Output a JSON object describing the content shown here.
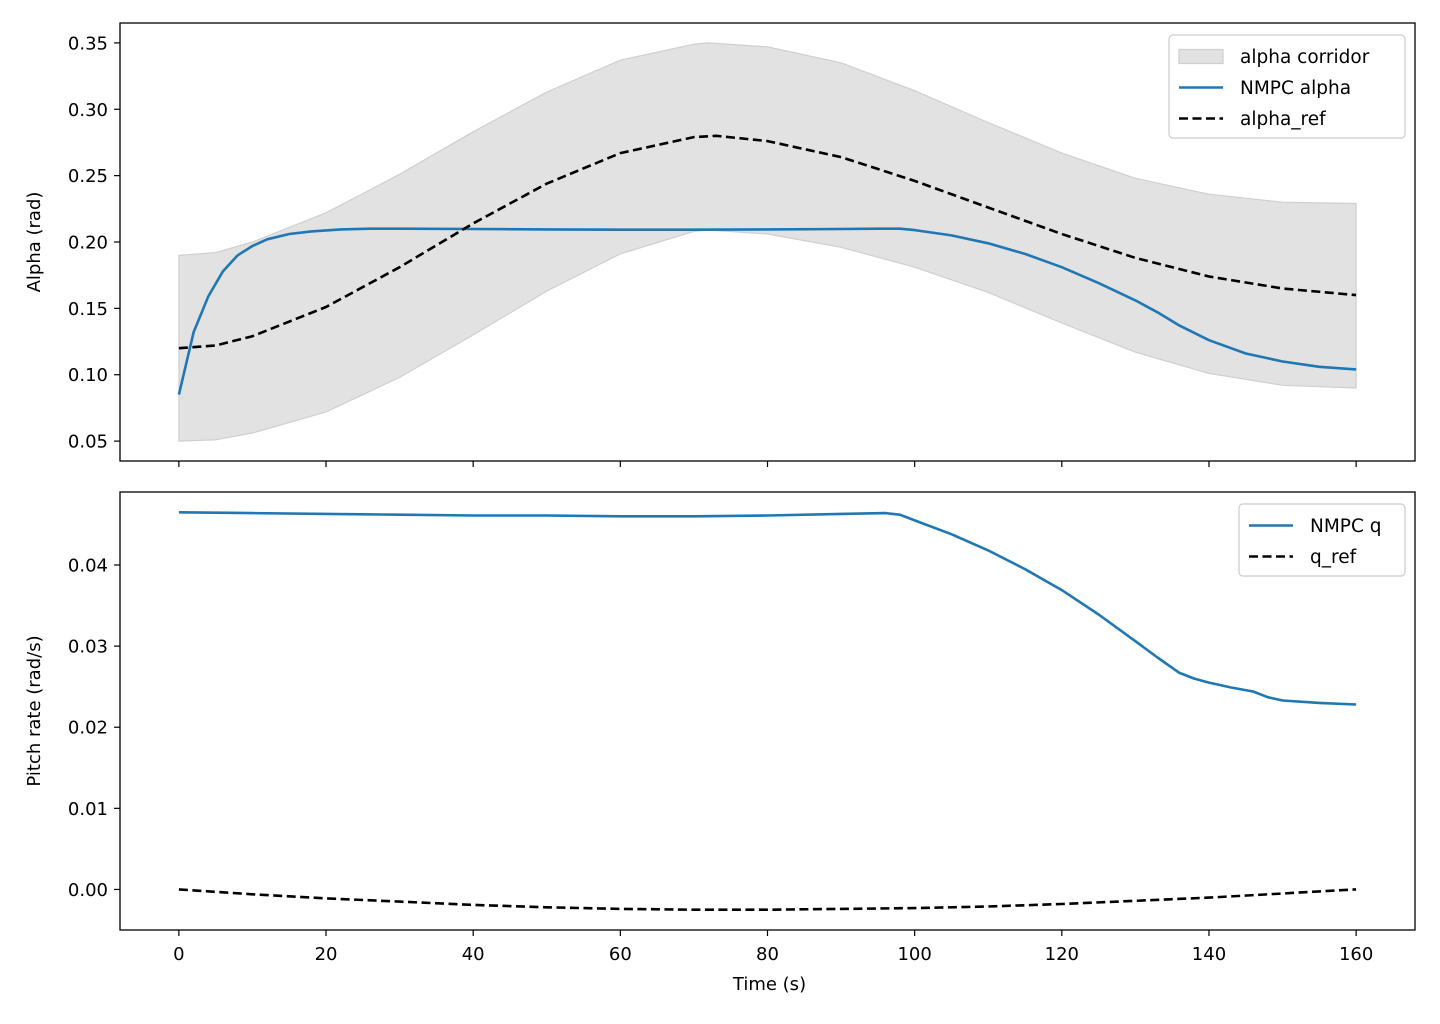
{
  "chart_data": [
    {
      "type": "line",
      "title": "",
      "xlabel": "",
      "ylabel": "Alpha (rad)",
      "xlim": [
        -8,
        168
      ],
      "ylim": [
        0.035,
        0.365
      ],
      "xticks": [
        0,
        20,
        40,
        60,
        80,
        100,
        120,
        140,
        160
      ],
      "yticks": [
        "0.05",
        "0.10",
        "0.15",
        "0.20",
        "0.25",
        "0.30",
        "0.35"
      ],
      "grid": false,
      "legend": "top-right",
      "band": {
        "name": "alpha corridor",
        "color": "#e2e2e2",
        "edge_color": "#cfcfcf",
        "x": [
          0,
          5,
          10,
          20,
          30,
          40,
          50,
          60,
          70,
          72,
          80,
          90,
          100,
          110,
          120,
          130,
          140,
          150,
          160
        ],
        "upper": [
          0.19,
          0.192,
          0.2,
          0.222,
          0.251,
          0.283,
          0.313,
          0.337,
          0.349,
          0.35,
          0.347,
          0.335,
          0.314,
          0.29,
          0.267,
          0.248,
          0.236,
          0.23,
          0.229
        ],
        "lower": [
          0.05,
          0.051,
          0.056,
          0.072,
          0.098,
          0.13,
          0.163,
          0.191,
          0.208,
          0.209,
          0.206,
          0.196,
          0.181,
          0.162,
          0.139,
          0.117,
          0.101,
          0.092,
          0.09
        ]
      },
      "series": [
        {
          "name": "NMPC alpha",
          "color": "#1f77b4",
          "dash": "solid",
          "x": [
            0,
            2,
            4,
            6,
            8,
            10,
            12,
            15,
            18,
            22,
            26,
            30,
            40,
            50,
            60,
            70,
            80,
            90,
            95,
            98,
            100,
            105,
            110,
            115,
            120,
            125,
            130,
            133,
            136,
            140,
            145,
            150,
            155,
            160
          ],
          "y": [
            0.085,
            0.132,
            0.159,
            0.178,
            0.19,
            0.197,
            0.202,
            0.206,
            0.208,
            0.2095,
            0.21,
            0.21,
            0.2098,
            0.2095,
            0.2093,
            0.2093,
            0.2095,
            0.2098,
            0.21,
            0.21,
            0.209,
            0.205,
            0.199,
            0.191,
            0.181,
            0.169,
            0.156,
            0.147,
            0.137,
            0.126,
            0.116,
            0.11,
            0.106,
            0.104
          ]
        },
        {
          "name": "alpha_ref",
          "color": "#000000",
          "dash": "dashed",
          "x": [
            0,
            5,
            10,
            20,
            30,
            40,
            50,
            60,
            70,
            73,
            80,
            90,
            100,
            110,
            120,
            130,
            140,
            150,
            160
          ],
          "y": [
            0.12,
            0.122,
            0.129,
            0.151,
            0.181,
            0.214,
            0.244,
            0.267,
            0.279,
            0.28,
            0.276,
            0.264,
            0.246,
            0.226,
            0.206,
            0.188,
            0.174,
            0.165,
            0.16
          ]
        }
      ]
    },
    {
      "type": "line",
      "title": "",
      "xlabel": "Time (s)",
      "ylabel": "Pitch rate (rad/s)",
      "xlim": [
        -8,
        168
      ],
      "ylim": [
        -0.005,
        0.049
      ],
      "xticks": [
        0,
        20,
        40,
        60,
        80,
        100,
        120,
        140,
        160
      ],
      "yticks": [
        "0.00",
        "0.01",
        "0.02",
        "0.03",
        "0.04"
      ],
      "grid": false,
      "legend": "top-right",
      "series": [
        {
          "name": "NMPC q",
          "color": "#1f77b4",
          "dash": "solid",
          "x": [
            0,
            10,
            20,
            30,
            40,
            50,
            60,
            70,
            80,
            90,
            96,
            98,
            100,
            105,
            110,
            115,
            120,
            125,
            130,
            133,
            136,
            138,
            140,
            143,
            146,
            148,
            150,
            155,
            160
          ],
          "y": [
            0.0465,
            0.0464,
            0.0463,
            0.0462,
            0.0461,
            0.0461,
            0.046,
            0.046,
            0.0461,
            0.0463,
            0.0464,
            0.0462,
            0.0455,
            0.0438,
            0.0418,
            0.0395,
            0.0369,
            0.0339,
            0.0306,
            0.0286,
            0.0267,
            0.026,
            0.0255,
            0.0249,
            0.0244,
            0.0237,
            0.0233,
            0.023,
            0.0228
          ]
        },
        {
          "name": "q_ref",
          "color": "#000000",
          "dash": "dashed",
          "x": [
            0,
            10,
            20,
            30,
            40,
            50,
            60,
            70,
            80,
            90,
            100,
            110,
            120,
            130,
            140,
            150,
            160
          ],
          "y": [
            0.0,
            -0.0006,
            -0.0011,
            -0.0015,
            -0.0019,
            -0.0022,
            -0.0024,
            -0.0025,
            -0.0025,
            -0.0024,
            -0.0023,
            -0.0021,
            -0.0018,
            -0.0014,
            -0.001,
            -0.0005,
            0.0
          ]
        }
      ]
    }
  ]
}
